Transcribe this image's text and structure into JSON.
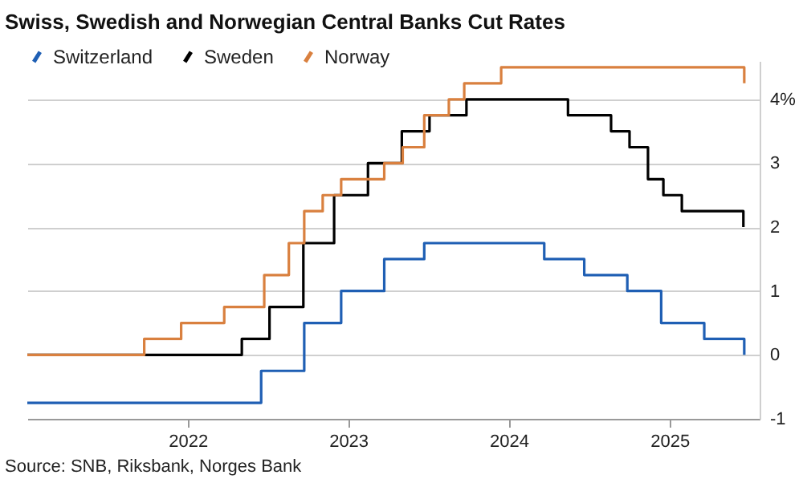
{
  "chart_data": {
    "type": "step",
    "title": "Swiss, Swedish and Norwegian Central Banks Cut Rates",
    "series": [
      {
        "name": "Switzerland",
        "color": "#1f5fb4",
        "x": [
          "2021-01-01",
          "2022-06-17",
          "2022-09-23",
          "2022-12-16",
          "2023-03-24",
          "2023-06-23",
          "2024-03-22",
          "2024-06-21",
          "2024-09-27",
          "2024-12-13",
          "2025-03-21",
          "2025-06-20"
        ],
        "values": [
          -0.75,
          -0.25,
          0.5,
          1.0,
          1.5,
          1.75,
          1.5,
          1.25,
          1.0,
          0.5,
          0.25,
          0
        ]
      },
      {
        "name": "Sweden",
        "color": "#000000",
        "x": [
          "2021-01-01",
          "2022-05-04",
          "2022-07-06",
          "2022-09-21",
          "2022-11-30",
          "2023-02-15",
          "2023-05-03",
          "2023-07-05",
          "2023-09-27",
          "2024-05-15",
          "2024-08-21",
          "2024-10-02",
          "2024-11-13",
          "2024-12-18",
          "2025-01-29",
          "2025-06-18"
        ],
        "values": [
          0,
          0.25,
          0.75,
          1.75,
          2.5,
          3.0,
          3.5,
          3.75,
          4.0,
          3.75,
          3.5,
          3.25,
          2.75,
          2.5,
          2.25,
          2.0
        ]
      },
      {
        "name": "Norway",
        "color": "#d9803f",
        "x": [
          "2021-01-01",
          "2021-09-24",
          "2021-12-17",
          "2022-03-25",
          "2022-06-24",
          "2022-08-19",
          "2022-09-23",
          "2022-11-04",
          "2022-12-16",
          "2023-03-24",
          "2023-05-05",
          "2023-06-23",
          "2023-08-18",
          "2023-09-22",
          "2023-12-15",
          "2025-06-20"
        ],
        "values": [
          0,
          0.25,
          0.5,
          0.75,
          1.25,
          1.75,
          2.25,
          2.5,
          2.75,
          3.0,
          3.25,
          3.75,
          4.0,
          4.25,
          4.5,
          4.25
        ]
      }
    ],
    "xlim": [
      "2021-01-01",
      "2025-07-25"
    ],
    "xticks": [
      "2022",
      "2023",
      "2024",
      "2025"
    ],
    "ylim": [
      -1,
      4.6
    ],
    "yticks": [
      -1,
      0,
      1,
      2,
      3,
      {
        "value": 4,
        "label": "4%"
      }
    ],
    "grid": "y",
    "legend": "top left",
    "line_style": "solid",
    "annotations": [
      "Source: SNB, Riksbank, Norges Bank"
    ]
  }
}
